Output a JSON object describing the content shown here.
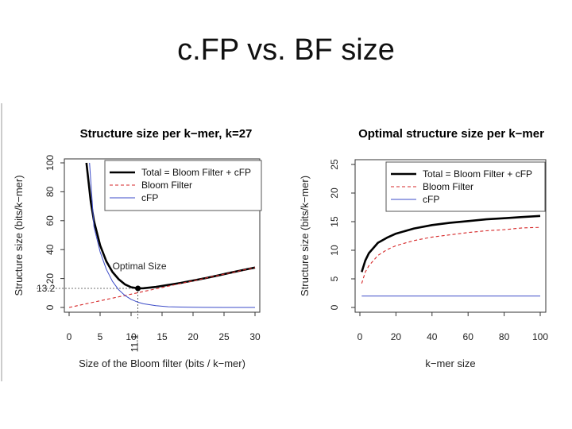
{
  "slide": {
    "title": "c.FP vs. BF size"
  },
  "colors": {
    "total": "#000000",
    "bloom": "#d62728",
    "cfp": "#3b4bc8",
    "axis": "#333333"
  },
  "legend_labels": [
    "Total = Bloom Filter + cFP",
    "Bloom Filter",
    "cFP"
  ],
  "chart_data": [
    {
      "type": "line",
      "title": "Structure size per k−mer, k=27",
      "xlabel": "Size of the Bloom filter (bits / k−mer)",
      "ylabel": "Structure size (bits/k−mer)",
      "xlim": [
        0,
        30
      ],
      "ylim": [
        0,
        100
      ],
      "xticks": [
        0,
        5,
        10,
        15,
        20,
        25,
        30
      ],
      "yticks": [
        0,
        20,
        40,
        60,
        80,
        100
      ],
      "legend": "top-right",
      "annotations": {
        "optimal_label": "Optimal Size",
        "optimal_x": "11.1",
        "optimal_y": "13.2"
      },
      "series": [
        {
          "name": "Total = Bloom Filter + cFP",
          "x": [
            2.8,
            3.5,
            4,
            5,
            6,
            7,
            8,
            9,
            10,
            11.1,
            12,
            14,
            16,
            18,
            20,
            22,
            24,
            26,
            28,
            30
          ],
          "y": [
            100,
            73,
            60,
            43,
            32,
            24.5,
            19.5,
            16,
            14,
            13.2,
            13.3,
            14.2,
            15.6,
            17,
            18.6,
            20.3,
            22.1,
            24,
            25.8,
            27.6
          ]
        },
        {
          "name": "Bloom Filter",
          "x": [
            0,
            5,
            10,
            15,
            20,
            25,
            30
          ],
          "y": [
            0,
            4.6,
            9.2,
            13.8,
            18.4,
            23,
            27.6
          ]
        },
        {
          "name": "cFP",
          "x": [
            3.3,
            4,
            5,
            6,
            7,
            8,
            9,
            10,
            11.1,
            12,
            14,
            16,
            18,
            20,
            25,
            30
          ],
          "y": [
            100,
            56,
            38.5,
            26.5,
            18,
            12.2,
            8.3,
            5.6,
            3.6,
            2.5,
            1.2,
            0.5,
            0.25,
            0.1,
            0.02,
            0
          ]
        }
      ]
    },
    {
      "type": "line",
      "title": "Optimal structure size per k−mer",
      "xlabel": "k−mer size",
      "ylabel": "Structure size (bits/k−mer)",
      "xlim": [
        0,
        100
      ],
      "ylim": [
        0,
        25
      ],
      "xticks": [
        0,
        20,
        40,
        60,
        80,
        100
      ],
      "yticks": [
        0,
        5,
        10,
        15,
        20,
        25
      ],
      "legend": "top-right",
      "series": [
        {
          "name": "Total = Bloom Filter + cFP",
          "x": [
            1,
            3,
            5,
            10,
            15,
            20,
            30,
            40,
            50,
            60,
            70,
            80,
            90,
            100
          ],
          "y": [
            6.2,
            8.2,
            9.5,
            11.3,
            12.2,
            12.9,
            13.8,
            14.4,
            14.8,
            15.1,
            15.4,
            15.6,
            15.8,
            16
          ]
        },
        {
          "name": "Bloom Filter",
          "x": [
            1,
            3,
            5,
            10,
            15,
            20,
            30,
            40,
            50,
            60,
            70,
            80,
            90,
            100
          ],
          "y": [
            4.2,
            6.2,
            7.3,
            9.1,
            10.1,
            10.8,
            11.7,
            12.3,
            12.7,
            13.1,
            13.4,
            13.6,
            13.9,
            14
          ]
        },
        {
          "name": "cFP",
          "x": [
            1,
            100
          ],
          "y": [
            2,
            2
          ]
        }
      ]
    }
  ]
}
